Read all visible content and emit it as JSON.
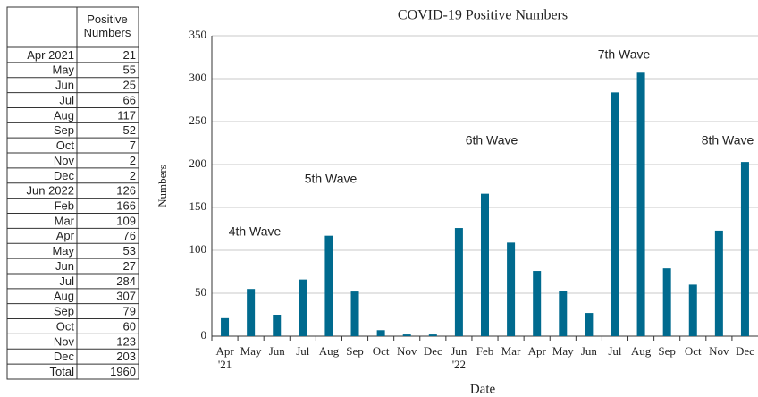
{
  "table": {
    "header": [
      "Positive\nNumbers"
    ],
    "rows": [
      [
        "Apr 2021",
        "21"
      ],
      [
        "May",
        "55"
      ],
      [
        "Jun",
        "25"
      ],
      [
        "Jul",
        "66"
      ],
      [
        "Aug",
        "117"
      ],
      [
        "Sep",
        "52"
      ],
      [
        "Oct",
        "7"
      ],
      [
        "Nov",
        "2"
      ],
      [
        "Dec",
        "2"
      ],
      [
        "Jun 2022",
        "126"
      ],
      [
        "Feb",
        "166"
      ],
      [
        "Mar",
        "109"
      ],
      [
        "Apr",
        "76"
      ],
      [
        "May",
        "53"
      ],
      [
        "Jun",
        "27"
      ],
      [
        "Jul",
        "284"
      ],
      [
        "Aug",
        "307"
      ],
      [
        "Sep",
        "79"
      ],
      [
        "Oct",
        "60"
      ],
      [
        "Nov",
        "123"
      ],
      [
        "Dec",
        "203"
      ],
      [
        "Total",
        "1960"
      ]
    ]
  },
  "chart_data": {
    "type": "bar",
    "title": "COVID-19 Positive Numbers",
    "x_label": "Date",
    "y_label": "Numbers",
    "categories": [
      "Apr\n'21",
      "May",
      "Jun",
      "Jul",
      "Aug",
      "Sep",
      "Oct",
      "Nov",
      "Dec",
      "Jun\n'22",
      "Feb",
      "Mar",
      "Apr",
      "May",
      "Jun",
      "Jul",
      "Aug",
      "Sep",
      "Oct",
      "Nov",
      "Dec"
    ],
    "values": [
      21,
      55,
      25,
      66,
      117,
      52,
      7,
      2,
      2,
      126,
      166,
      109,
      76,
      53,
      27,
      284,
      307,
      79,
      60,
      123,
      203
    ],
    "color": "#006a8e",
    "ylim": [
      0,
      350
    ],
    "yticks": [
      0,
      50,
      100,
      150,
      200,
      250,
      300,
      350
    ],
    "grid": true,
    "annotations": [
      "4th Wave",
      "5th Wave",
      "6th Wave",
      "7th Wave",
      "8th Wave"
    ]
  }
}
